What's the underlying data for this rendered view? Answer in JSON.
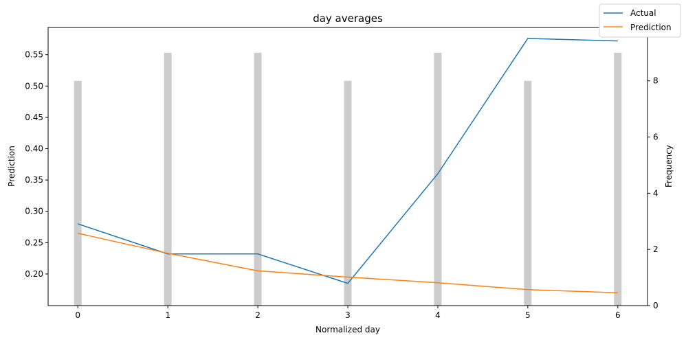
{
  "chart_data": {
    "type": "line",
    "title": "day averages",
    "xlabel": "Normalized day",
    "ylabel": "Prediction",
    "y2label": "Frequency",
    "x": [
      0,
      1,
      2,
      3,
      4,
      5,
      6
    ],
    "xlim": [
      -0.33,
      6.33
    ],
    "ylim": [
      0.1495,
      0.5935
    ],
    "y2lim": [
      0,
      9.9
    ],
    "xticks": [
      "0",
      "1",
      "2",
      "3",
      "4",
      "5",
      "6"
    ],
    "yticks": [
      0.2,
      0.25,
      0.3,
      0.35,
      0.4,
      0.45,
      0.5,
      0.55
    ],
    "yticklabels": [
      "0.20",
      "0.25",
      "0.30",
      "0.35",
      "0.40",
      "0.45",
      "0.50",
      "0.55"
    ],
    "y2ticks": [
      0,
      2,
      4,
      6,
      8
    ],
    "y2ticklabels": [
      "0",
      "2",
      "4",
      "6",
      "8"
    ],
    "series": [
      {
        "name": "Actual",
        "color": "#1f77b4",
        "values": [
          0.28,
          0.232,
          0.232,
          0.185,
          0.36,
          0.576,
          0.572
        ]
      },
      {
        "name": "Prediction",
        "color": "#ff7f0e",
        "values": [
          0.265,
          0.233,
          0.205,
          0.195,
          0.186,
          0.175,
          0.17
        ]
      }
    ],
    "bars": {
      "name": "Frequency",
      "color": "#cccccc",
      "axis": "right",
      "values": [
        8,
        9,
        9,
        8,
        9,
        8,
        9
      ]
    },
    "legend": {
      "position": "top-right",
      "entries": [
        "Actual",
        "Prediction"
      ]
    },
    "grid": false
  }
}
